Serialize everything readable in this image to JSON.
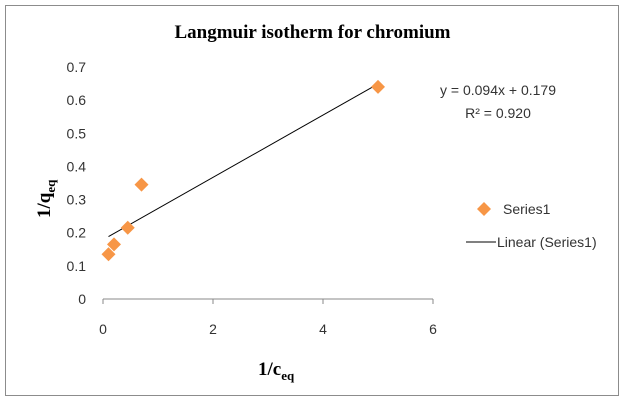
{
  "chart_data": {
    "type": "scatter",
    "title": "Langmuir isotherm for chromium",
    "xlabel": {
      "main": "1/c",
      "sub": "eq"
    },
    "ylabel": {
      "main": "1/q",
      "sub": "eq"
    },
    "xlim": [
      0,
      6
    ],
    "ylim": [
      0,
      0.7
    ],
    "xticks": [
      0,
      2,
      4,
      6
    ],
    "yticks": [
      0,
      0.1,
      0.2,
      0.3,
      0.4,
      0.5,
      0.6,
      0.7
    ],
    "xtick_labels": [
      "0",
      "2",
      "4",
      "6"
    ],
    "ytick_labels": [
      "0",
      "0.1",
      "0.2",
      "0.3",
      "0.4",
      "0.5",
      "0.6",
      "0.7"
    ],
    "grid": false,
    "legend_position": "right",
    "series": [
      {
        "name": "Series1",
        "marker": "diamond",
        "color": "#f79646",
        "x": [
          0.1,
          0.2,
          0.45,
          0.7,
          5.0
        ],
        "y": [
          0.135,
          0.165,
          0.215,
          0.345,
          0.64
        ]
      }
    ],
    "trendline": {
      "name": "Linear (Series1)",
      "slope": 0.094,
      "intercept": 0.179,
      "x_range": [
        0.1,
        5.0
      ],
      "color": "#000000"
    },
    "equation_text": "y = 0.094x + 0.179",
    "r2_text": "R² = 0.920"
  }
}
